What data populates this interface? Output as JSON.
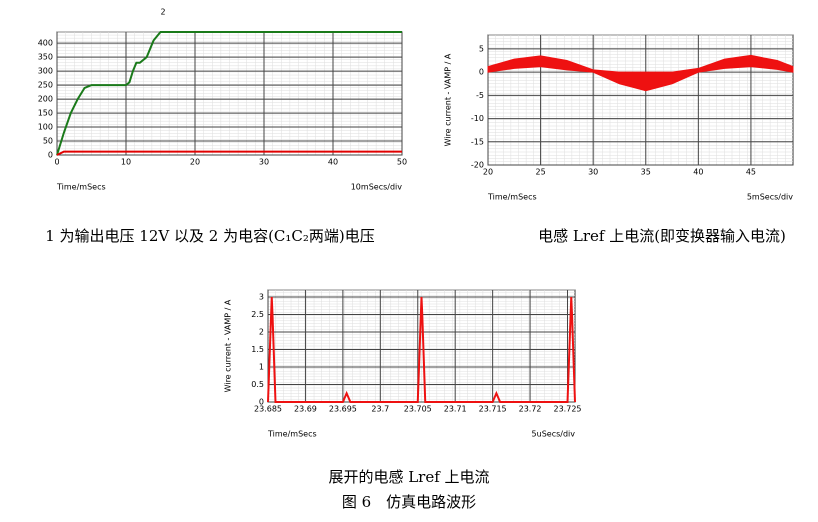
{
  "chart_data": [
    {
      "type": "line",
      "caption": "1 为输出电压 12V 以及 2 为电容(C₁C₂两端)电压",
      "xlabel": "Time/mSecs",
      "xscale_label": "10mSecs/div",
      "annotation": "2",
      "x": [
        0,
        1,
        2,
        3,
        4,
        5,
        10,
        10.5,
        11,
        11.5,
        12,
        13,
        14,
        15,
        50
      ],
      "series": [
        {
          "color": "#1a7a1a",
          "values": [
            0,
            80,
            150,
            200,
            240,
            250,
            250,
            260,
            300,
            330,
            330,
            350,
            410,
            440,
            440
          ]
        },
        {
          "color": "#e00000",
          "values": [
            0,
            12,
            12,
            12,
            12,
            12,
            12,
            12,
            12,
            12,
            12,
            12,
            12,
            12,
            12
          ]
        }
      ],
      "xlim": [
        0,
        50
      ],
      "xticks": [
        0,
        10,
        20,
        30,
        40,
        50
      ],
      "ylim": [
        0,
        440
      ],
      "yticks": [
        0,
        50,
        100,
        150,
        200,
        250,
        300,
        350,
        400
      ],
      "grid": true
    },
    {
      "type": "area",
      "caption": "电感 Lref 上电流(即变换器输入电流)",
      "xlabel": "Time/mSecs",
      "xscale_label": "5mSecs/div",
      "ylabel": "Wire current - VAMP / A",
      "x": [
        20,
        22.5,
        25,
        27.5,
        30,
        32.5,
        35,
        37.5,
        40,
        42.5,
        45,
        47.5,
        49
      ],
      "series": [
        {
          "color": "#ee1111",
          "values": [
            1.2,
            2.8,
            3.5,
            2.5,
            0.5,
            0,
            0,
            0,
            0.8,
            2.8,
            3.6,
            2.5,
            1.2
          ]
        },
        {
          "color": "#ee1111",
          "values": [
            0,
            0.8,
            1.2,
            0.5,
            0,
            -2.5,
            -4,
            -2.5,
            0,
            0.8,
            1.2,
            0.6,
            0
          ]
        }
      ],
      "xlim": [
        20,
        49
      ],
      "xticks": [
        20,
        25,
        30,
        35,
        40,
        45
      ],
      "ylim": [
        -20,
        8
      ],
      "yticks": [
        -20,
        -15,
        -10,
        -5,
        0,
        5
      ],
      "grid": true
    },
    {
      "type": "line",
      "caption": "展开的电感 Lref 上电流",
      "xlabel": "Time/mSecs",
      "xscale_label": "5uSecs/div",
      "ylabel": "Wire current - VAMP / A",
      "x": [
        23.685,
        23.6855,
        23.6856,
        23.686,
        23.695,
        23.6955,
        23.696,
        23.705,
        23.7055,
        23.7056,
        23.706,
        23.715,
        23.7155,
        23.716,
        23.725,
        23.7255,
        23.7256,
        23.726
      ],
      "series": [
        {
          "color": "#ee1111",
          "values": [
            0,
            3,
            2.5,
            0,
            0,
            0.25,
            0,
            0,
            3,
            2.5,
            0,
            0,
            0.25,
            0,
            0,
            3,
            2.5,
            0
          ]
        }
      ],
      "xlim": [
        23.685,
        23.726
      ],
      "xticks": [
        23.685,
        23.69,
        23.695,
        23.7,
        23.705,
        23.71,
        23.715,
        23.72,
        23.725
      ],
      "ylim": [
        0,
        3.2
      ],
      "yticks": [
        0,
        0.5,
        1,
        1.5,
        2,
        2.5,
        3
      ],
      "grid": true
    }
  ],
  "figure_caption": "图 6　仿真电路波形"
}
